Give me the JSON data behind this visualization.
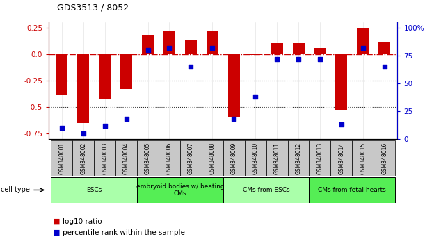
{
  "title": "GDS3513 / 8052",
  "samples": [
    "GSM348001",
    "GSM348002",
    "GSM348003",
    "GSM348004",
    "GSM348005",
    "GSM348006",
    "GSM348007",
    "GSM348008",
    "GSM348009",
    "GSM348010",
    "GSM348011",
    "GSM348012",
    "GSM348013",
    "GSM348014",
    "GSM348015",
    "GSM348016"
  ],
  "log10_ratio": [
    -0.38,
    -0.65,
    -0.42,
    -0.33,
    0.18,
    0.22,
    0.13,
    0.22,
    -0.6,
    -0.01,
    0.1,
    0.1,
    0.06,
    -0.53,
    0.24,
    0.11
  ],
  "percentile_rank": [
    10,
    5,
    12,
    18,
    80,
    82,
    65,
    82,
    18,
    38,
    72,
    72,
    72,
    13,
    82,
    65
  ],
  "ylim_left": [
    -0.8,
    0.3
  ],
  "ylim_right": [
    0,
    105
  ],
  "yticks_left": [
    -0.75,
    -0.5,
    -0.25,
    0.0,
    0.25
  ],
  "yticks_right": [
    0,
    25,
    50,
    75,
    100
  ],
  "ytick_labels_right": [
    "0",
    "25",
    "50",
    "75",
    "100%"
  ],
  "cell_type_groups": [
    {
      "label": "ESCs",
      "start": 0,
      "end": 3,
      "color": "#aaffaa"
    },
    {
      "label": "embryoid bodies w/ beating\nCMs",
      "start": 4,
      "end": 7,
      "color": "#55ee55"
    },
    {
      "label": "CMs from ESCs",
      "start": 8,
      "end": 11,
      "color": "#aaffaa"
    },
    {
      "label": "CMs from fetal hearts",
      "start": 12,
      "end": 15,
      "color": "#55ee55"
    }
  ],
  "bar_color": "#cc0000",
  "dot_color": "#0000cc",
  "hline_color": "#cc0000",
  "dotted_line_color": "#333333",
  "bg_color": "#ffffff",
  "plot_bg_color": "#ffffff",
  "bar_width": 0.55,
  "gsm_box_color": "#c8c8c8"
}
